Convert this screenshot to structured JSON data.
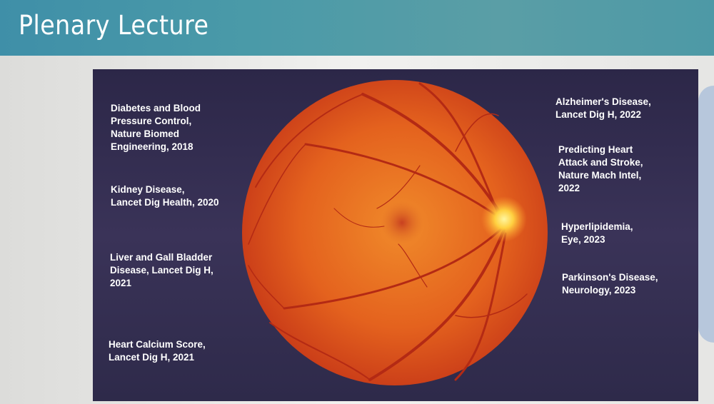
{
  "header": {
    "title": "Plenary Lecture"
  },
  "slide": {
    "image": "retinal-fundus-photo",
    "left_items": [
      "Diabetes and Blood\nPressure Control,\nNature Biomed\nEngineering, 2018",
      "Kidney Disease,\nLancet Dig Health, 2020",
      "Liver and Gall Bladder\nDisease, Lancet Dig H,\n2021",
      "Heart Calcium Score,\nLancet Dig H, 2021"
    ],
    "right_items": [
      "Alzheimer's Disease,\nLancet Dig H, 2022",
      "Predicting Heart\nAttack and Stroke,\nNature Mach Intel,\n2022",
      "Hyperlipidemia,\nEye, 2023",
      "Parkinson's Disease,\nNeurology, 2023"
    ]
  },
  "colors": {
    "header": "#4a9aa8",
    "slide_bg": "#342e52",
    "retina": "#e0541c"
  }
}
